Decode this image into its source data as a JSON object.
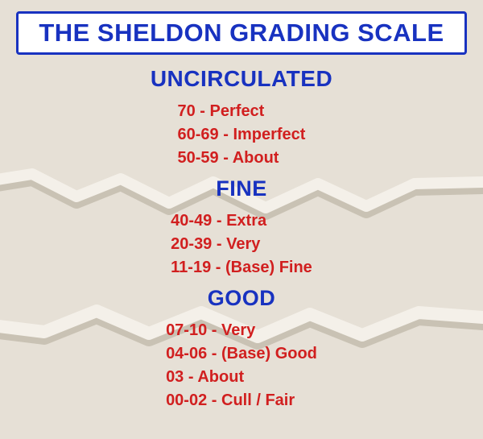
{
  "colors": {
    "background": "#e6e0d6",
    "crack_light": "#f4f0e9",
    "crack_shadow": "#c9c2b4",
    "title_bg": "#ffffff",
    "title_border": "#1832c0",
    "title_text": "#1832c0",
    "heading_text": "#1832c0",
    "item_text": "#d11f1f"
  },
  "title": "THE SHELDON GRADING SCALE",
  "sections": [
    {
      "heading": "UNCIRCULATED",
      "items": [
        {
          "range": "70",
          "label": "Perfect"
        },
        {
          "range": "60-69",
          "label": "Imperfect"
        },
        {
          "range": "50-59",
          "label": "About"
        }
      ]
    },
    {
      "heading": "FINE",
      "items": [
        {
          "range": "40-49",
          "label": "Extra"
        },
        {
          "range": "20-39",
          "label": "Very"
        },
        {
          "range": "11-19",
          "label": "(Base) Fine"
        }
      ]
    },
    {
      "heading": "GOOD",
      "items": [
        {
          "range": "07-10",
          "label": "Very"
        },
        {
          "range": "04-06",
          "label": "(Base) Good"
        },
        {
          "range": "03",
          "label": "About"
        },
        {
          "range": "00-02",
          "label": "Cull / Fair"
        }
      ]
    }
  ]
}
